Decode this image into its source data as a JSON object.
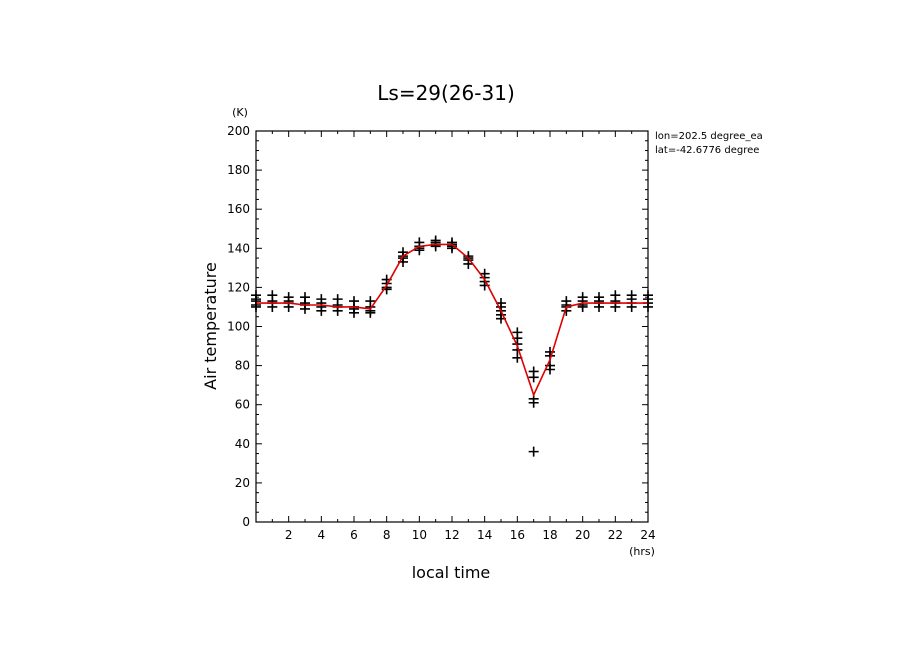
{
  "chart_data": {
    "type": "scatter",
    "title": "Ls=29(26-31)",
    "xlabel": "local time",
    "ylabel": "Air temperature",
    "x_unit": "(hrs)",
    "y_unit": "(K)",
    "xlim": [
      0,
      24
    ],
    "ylim": [
      0,
      200
    ],
    "x_ticks": [
      2,
      4,
      6,
      8,
      10,
      12,
      14,
      16,
      18,
      20,
      22,
      24
    ],
    "y_ticks": [
      0,
      20,
      40,
      60,
      80,
      100,
      120,
      140,
      160,
      180,
      200
    ],
    "grid": false,
    "annotations": [
      "lon=202.5 degree_ea",
      "lat=-42.6776 degree"
    ],
    "line_color": "#e00000",
    "marker_color": "#000000",
    "series": [
      {
        "type": "line",
        "x": [
          0,
          1,
          2,
          3,
          4,
          5,
          6,
          7,
          8,
          9,
          10,
          11,
          12,
          13,
          14,
          15,
          16,
          17,
          18,
          19,
          20,
          21,
          22,
          23,
          24
        ],
        "y": [
          112,
          112,
          112,
          111,
          111,
          110,
          110,
          109,
          121,
          136,
          141,
          142,
          142,
          135,
          124,
          108,
          90,
          65,
          83,
          110,
          112,
          112,
          112,
          112,
          112
        ]
      },
      {
        "type": "scatter",
        "points": [
          [
            0,
            116
          ],
          [
            0,
            114
          ],
          [
            0,
            113
          ],
          [
            0,
            111
          ],
          [
            0,
            110
          ],
          [
            1,
            116
          ],
          [
            1,
            113
          ],
          [
            1,
            112
          ],
          [
            1,
            110
          ],
          [
            2,
            115
          ],
          [
            2,
            113
          ],
          [
            2,
            112
          ],
          [
            2,
            110
          ],
          [
            3,
            115
          ],
          [
            3,
            112
          ],
          [
            3,
            111
          ],
          [
            3,
            109
          ],
          [
            4,
            114
          ],
          [
            4,
            112
          ],
          [
            4,
            110
          ],
          [
            4,
            108
          ],
          [
            5,
            114
          ],
          [
            5,
            111
          ],
          [
            5,
            110
          ],
          [
            5,
            108
          ],
          [
            6,
            113
          ],
          [
            6,
            110
          ],
          [
            6,
            109
          ],
          [
            6,
            107
          ],
          [
            7,
            113
          ],
          [
            7,
            110
          ],
          [
            7,
            108
          ],
          [
            7,
            107
          ],
          [
            8,
            124
          ],
          [
            8,
            122
          ],
          [
            8,
            120
          ],
          [
            8,
            119
          ],
          [
            9,
            138
          ],
          [
            9,
            136
          ],
          [
            9,
            135
          ],
          [
            9,
            133
          ],
          [
            10,
            143
          ],
          [
            10,
            141
          ],
          [
            10,
            140
          ],
          [
            10,
            139
          ],
          [
            11,
            144
          ],
          [
            11,
            143
          ],
          [
            11,
            142
          ],
          [
            11,
            141
          ],
          [
            12,
            143
          ],
          [
            12,
            142
          ],
          [
            12,
            141
          ],
          [
            12,
            140
          ],
          [
            13,
            136
          ],
          [
            13,
            135
          ],
          [
            13,
            134
          ],
          [
            13,
            132
          ],
          [
            14,
            127
          ],
          [
            14,
            125
          ],
          [
            14,
            123
          ],
          [
            14,
            121
          ],
          [
            15,
            112
          ],
          [
            15,
            110
          ],
          [
            15,
            108
          ],
          [
            15,
            106
          ],
          [
            15,
            104
          ],
          [
            16,
            97
          ],
          [
            16,
            94
          ],
          [
            16,
            91
          ],
          [
            16,
            88
          ],
          [
            16,
            84
          ],
          [
            17,
            77
          ],
          [
            17,
            74
          ],
          [
            17,
            63
          ],
          [
            17,
            61
          ],
          [
            17,
            36
          ],
          [
            18,
            87
          ],
          [
            18,
            85
          ],
          [
            18,
            80
          ],
          [
            18,
            78
          ],
          [
            19,
            113
          ],
          [
            19,
            111
          ],
          [
            19,
            110
          ],
          [
            19,
            108
          ],
          [
            20,
            115
          ],
          [
            20,
            113
          ],
          [
            20,
            111
          ],
          [
            20,
            110
          ],
          [
            21,
            115
          ],
          [
            21,
            113
          ],
          [
            21,
            112
          ],
          [
            21,
            110
          ],
          [
            22,
            116
          ],
          [
            22,
            113
          ],
          [
            22,
            112
          ],
          [
            22,
            110
          ],
          [
            23,
            116
          ],
          [
            23,
            114
          ],
          [
            23,
            112
          ],
          [
            23,
            110
          ],
          [
            24,
            116
          ],
          [
            24,
            114
          ],
          [
            24,
            112
          ],
          [
            24,
            110
          ]
        ]
      }
    ]
  }
}
